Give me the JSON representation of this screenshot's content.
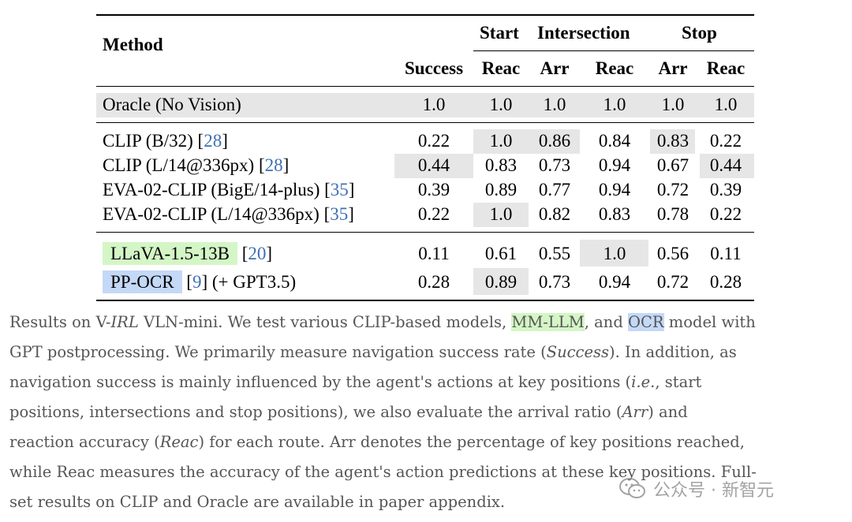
{
  "table": {
    "header": {
      "method": "Method",
      "group_start": "Start",
      "group_intersection": "Intersection",
      "group_stop": "Stop",
      "success": "Success",
      "start_reac": "Reac",
      "inter_arr": "Arr",
      "inter_reac": "Reac",
      "stop_arr": "Arr",
      "stop_reac": "Reac"
    },
    "oracle": {
      "method": "Oracle (No Vision)",
      "values": [
        "1.0",
        "1.0",
        "1.0",
        "1.0",
        "1.0",
        "1.0"
      ]
    },
    "clip_rows": [
      {
        "name": "CLIP (B/32)",
        "cite": "28",
        "values": [
          "0.22",
          "1.0",
          "0.86",
          "0.84",
          "0.83",
          "0.22"
        ]
      },
      {
        "name": "CLIP (L/14@336px)",
        "cite": "28",
        "values": [
          "0.44",
          "0.83",
          "0.73",
          "0.94",
          "0.67",
          "0.44"
        ]
      },
      {
        "name": "EVA-02-CLIP (BigE/14-plus)",
        "cite": "35",
        "values": [
          "0.39",
          "0.89",
          "0.77",
          "0.94",
          "0.72",
          "0.39"
        ]
      },
      {
        "name": "EVA-02-CLIP (L/14@336px)",
        "cite": "35",
        "values": [
          "0.22",
          "1.0",
          "0.82",
          "0.83",
          "0.78",
          "0.22"
        ]
      }
    ],
    "llava": {
      "name": "LLaVA-1.5-13B",
      "cite": "20",
      "values": [
        "0.11",
        "0.61",
        "0.55",
        "1.0",
        "0.56",
        "0.11"
      ]
    },
    "ppocr": {
      "name": "PP-OCR",
      "cite": "9",
      "suffix": "(+ GPT3.5)",
      "values": [
        "0.28",
        "0.89",
        "0.73",
        "0.94",
        "0.72",
        "0.28"
      ]
    }
  },
  "caption": {
    "l1_a": "Results on V-",
    "l1_irl": "IRL",
    "l1_b": " VLN-mini. We test various CLIP-based models, ",
    "l1_mmllm": "MM-LLM",
    "l1_c": ", and ",
    "l1_ocr": "OCR",
    "l1_d": " model with",
    "l2_a": "GPT postprocessing. We primarily measure navigation success rate (",
    "l2_success": "Success",
    "l2_b": "). In addition, as",
    "l3_a": "navigation success is mainly influenced by the agent's actions at key positions (",
    "l3_ie": "i.e.",
    "l3_b": ", start",
    "l4_a": "positions, intersections and stop positions), we also evaluate the arrival ratio (",
    "l4_arr": "Arr",
    "l4_b": ") and",
    "l5_a": "reaction accuracy (",
    "l5_reac": "Reac",
    "l5_b": ") for each route. Arr denotes the percentage of key positions reached,",
    "l6": "while Reac measures the accuracy of the agent's action predictions at these key positions. Full-",
    "l7": "set results on CLIP and Oracle are available in paper appendix."
  },
  "watermark": {
    "text": "公众号 · 新智元",
    "icon": "wechat-icon"
  }
}
